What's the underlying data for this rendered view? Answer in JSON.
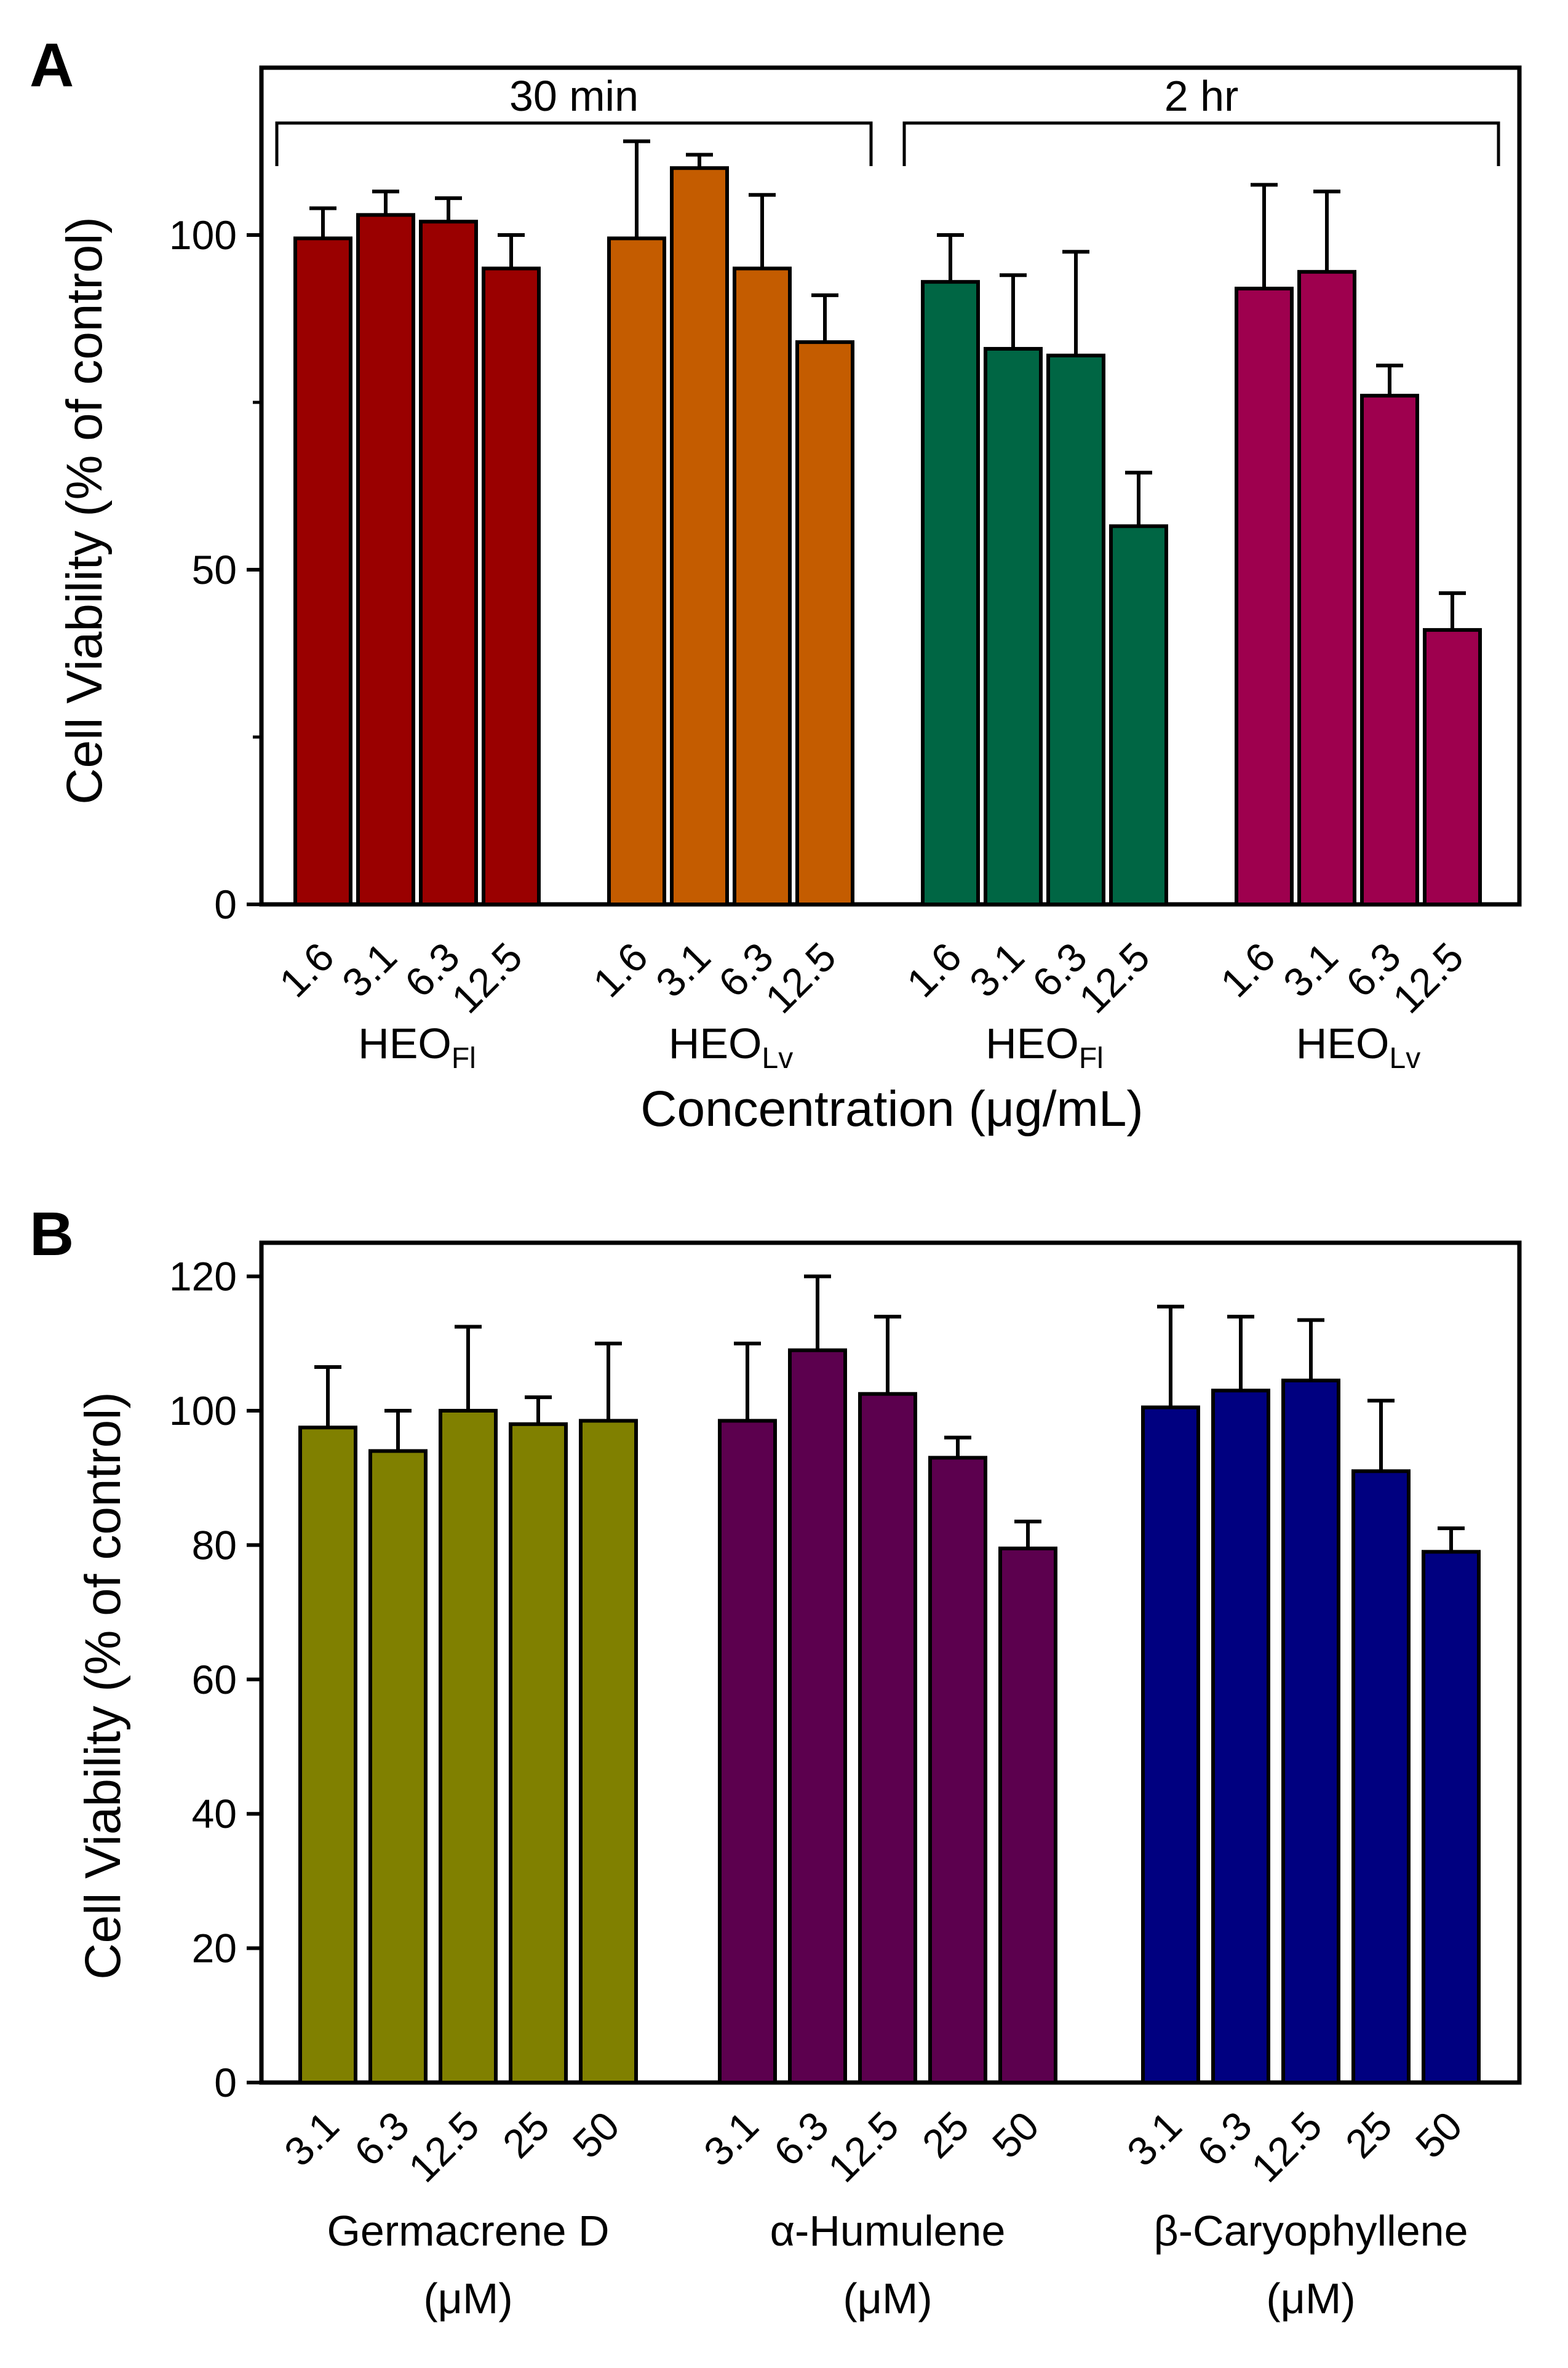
{
  "chart_data": [
    {
      "panel": "A",
      "type": "bar",
      "ylabel": "Cell Viability (% of control)",
      "xlabel": "Concentration (μg/mL)",
      "ylim": [
        0,
        125
      ],
      "yticks": [
        0,
        50,
        100
      ],
      "grid": false,
      "brackets": [
        {
          "label": "30 min",
          "group_span": [
            0,
            1
          ]
        },
        {
          "label": "2 hr",
          "group_span": [
            2,
            3
          ]
        }
      ],
      "groups": [
        {
          "name": "HEO",
          "subscript": "Fl",
          "color": "#9a0000",
          "categories": [
            "1.6",
            "3.1",
            "6.3",
            "12.5"
          ],
          "values": [
            99.5,
            103,
            102,
            95
          ],
          "errors": [
            4.5,
            3.5,
            3.5,
            5
          ]
        },
        {
          "name": "HEO",
          "subscript": "Lv",
          "color": "#c45c00",
          "categories": [
            "1.6",
            "3.1",
            "6.3",
            "12.5"
          ],
          "values": [
            99.5,
            110,
            95,
            84
          ],
          "errors": [
            14.5,
            2,
            11,
            7
          ]
        },
        {
          "name": "HEO",
          "subscript": "Fl",
          "color": "#006644",
          "categories": [
            "1.6",
            "3.1",
            "6.3",
            "12.5"
          ],
          "values": [
            93,
            83,
            82,
            56.5
          ],
          "errors": [
            7,
            11,
            15.5,
            8
          ]
        },
        {
          "name": "HEO",
          "subscript": "Lv",
          "color": "#9e004e",
          "categories": [
            "1.6",
            "3.1",
            "6.3",
            "12.5"
          ],
          "values": [
            92,
            94.5,
            76,
            41
          ],
          "errors": [
            15.5,
            12,
            4.5,
            5.5
          ]
        }
      ]
    },
    {
      "panel": "B",
      "type": "bar",
      "ylabel": "Cell Viability (% of control)",
      "ylim": [
        0,
        125
      ],
      "yticks": [
        0,
        20,
        40,
        60,
        80,
        100,
        120
      ],
      "grid": false,
      "groups": [
        {
          "name": "Germacrene D",
          "unit": "(μM)",
          "color": "#808000",
          "categories": [
            "3.1",
            "6.3",
            "12.5",
            "25",
            "50"
          ],
          "values": [
            97.5,
            94,
            100,
            98,
            98.5
          ],
          "errors": [
            9,
            6,
            12.5,
            4,
            11.5
          ]
        },
        {
          "name": "α-Humulene",
          "unit": "(μM)",
          "color": "#5c004e",
          "categories": [
            "3.1",
            "6.3",
            "12.5",
            "25",
            "50"
          ],
          "values": [
            98.5,
            109,
            102.5,
            93,
            79.5
          ],
          "errors": [
            11.5,
            11,
            11.5,
            3,
            4
          ]
        },
        {
          "name": "β-Caryophyllene",
          "unit": "(μM)",
          "color": "#000080",
          "categories": [
            "3.1",
            "6.3",
            "12.5",
            "25",
            "50"
          ],
          "values": [
            100.5,
            103,
            104.5,
            91,
            79
          ],
          "errors": [
            15,
            11,
            9,
            10.5,
            3.5
          ]
        }
      ]
    }
  ]
}
